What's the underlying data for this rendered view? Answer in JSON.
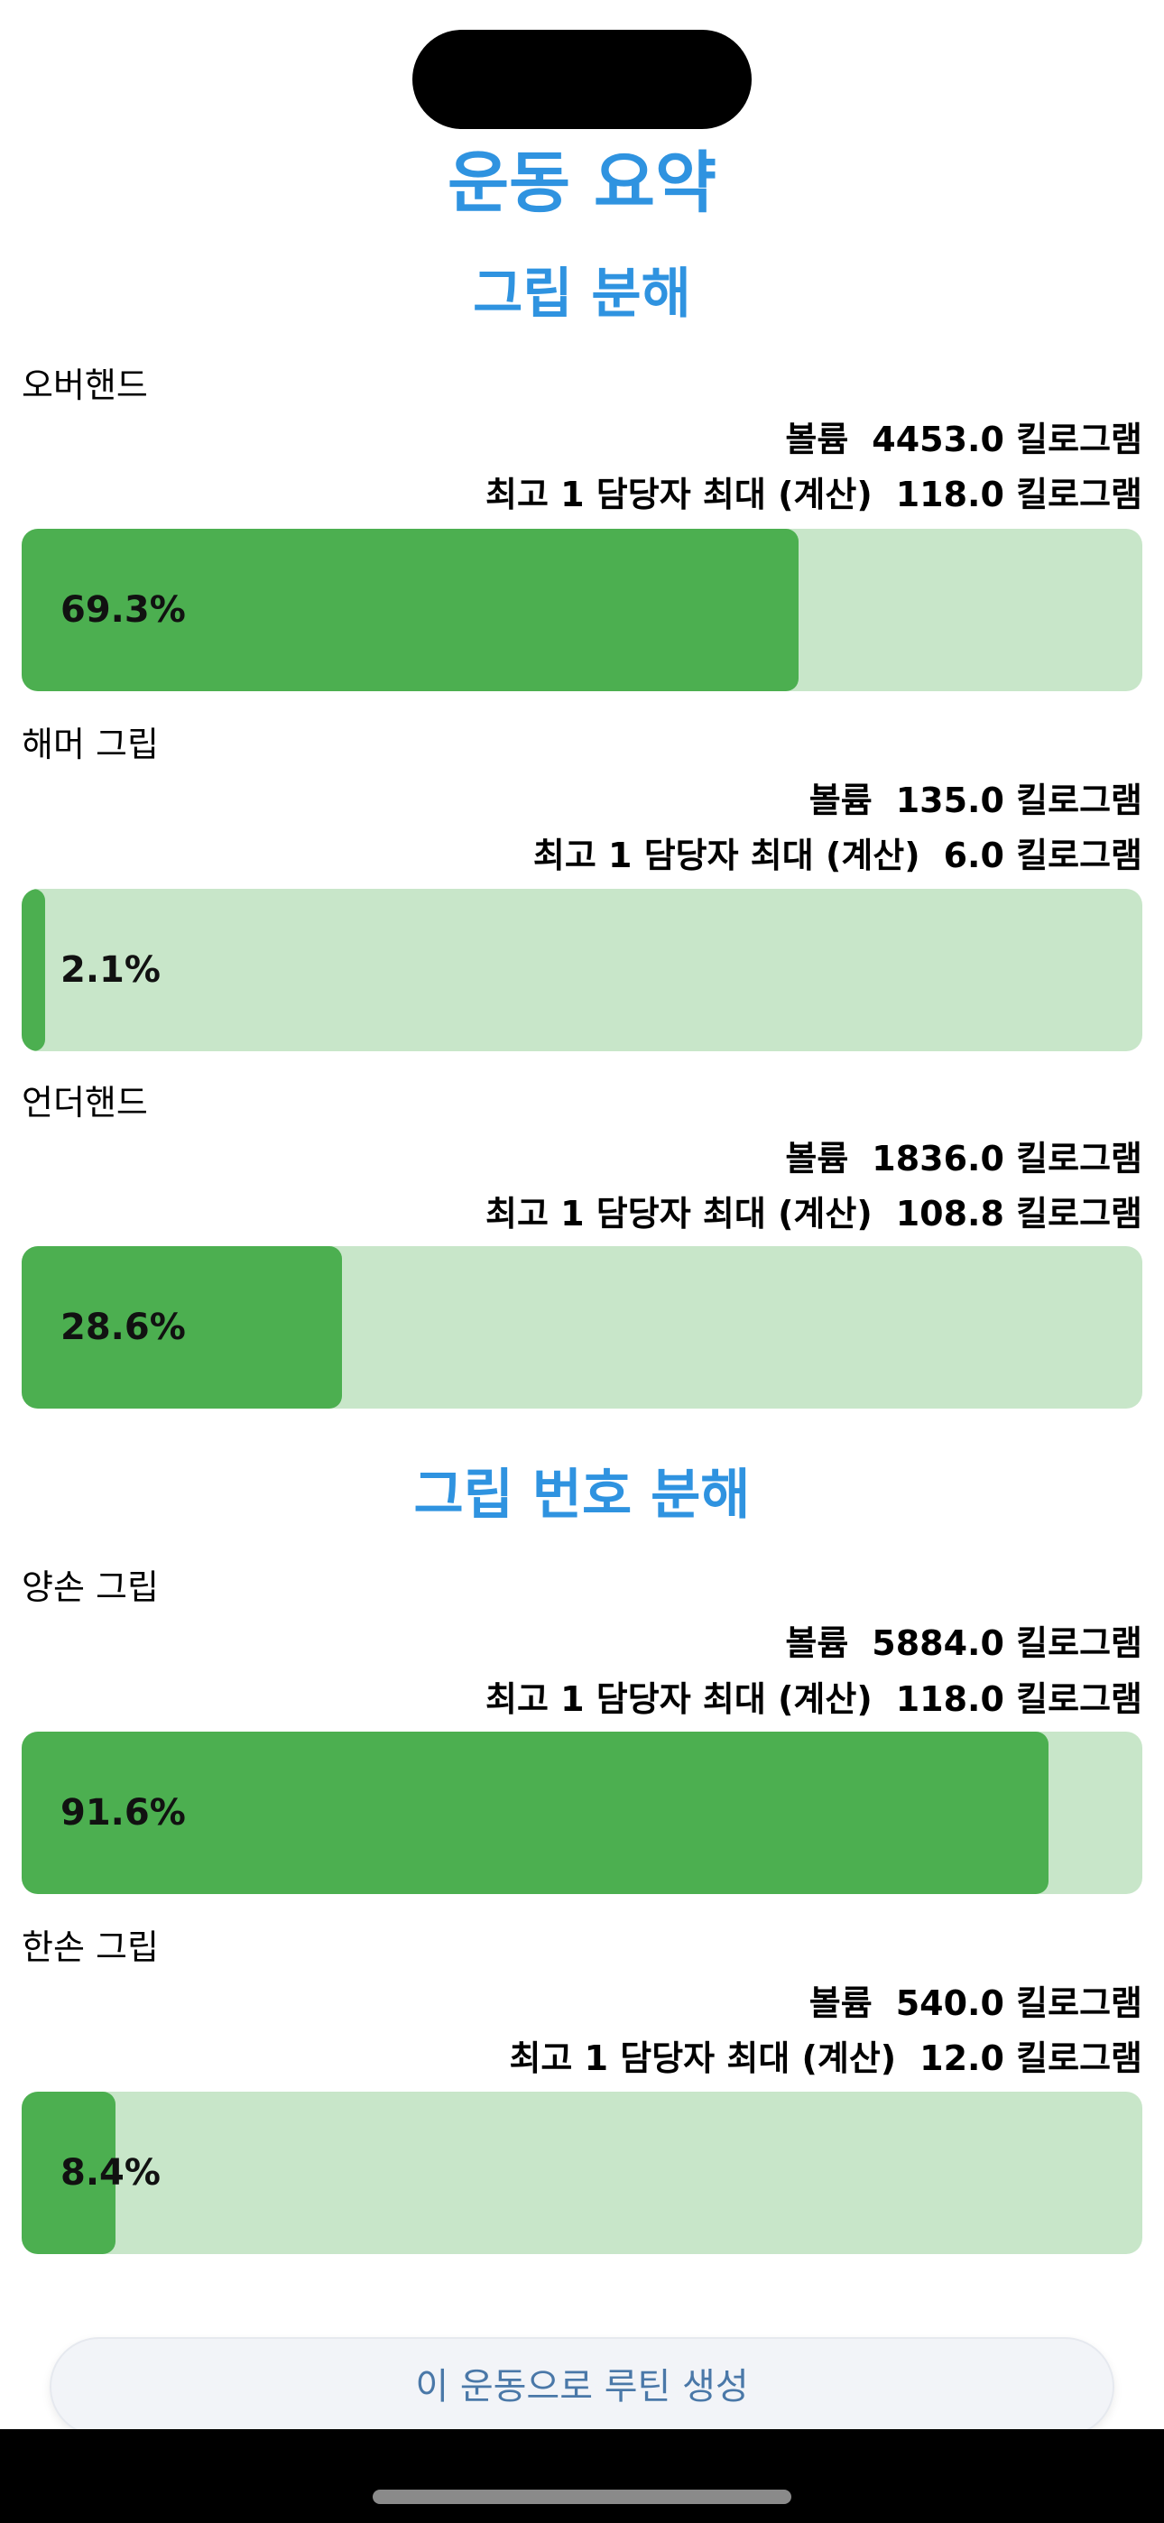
{
  "header": {
    "title": "운동 요약"
  },
  "sections": {
    "grip_breakdown": {
      "title": "그립 분해",
      "items": [
        {
          "name": "오버핸드",
          "volume_label": "볼륨",
          "volume_value": "4453.0 킬로그램",
          "max_label": "최고 1 담당자 최대 (계산)",
          "max_value": "118.0 킬로그램",
          "percent": 69.3,
          "percent_label": "69.3%"
        },
        {
          "name": "해머 그립",
          "volume_label": "볼륨",
          "volume_value": "135.0 킬로그램",
          "max_label": "최고 1 담당자 최대 (계산)",
          "max_value": "6.0 킬로그램",
          "percent": 2.1,
          "percent_label": "2.1%"
        },
        {
          "name": "언더핸드",
          "volume_label": "볼륨",
          "volume_value": "1836.0 킬로그램",
          "max_label": "최고 1 담당자 최대 (계산)",
          "max_value": "108.8 킬로그램",
          "percent": 28.6,
          "percent_label": "28.6%"
        }
      ]
    },
    "grip_count_breakdown": {
      "title": "그립 번호 분해",
      "items": [
        {
          "name": "양손 그립",
          "volume_label": "볼륨",
          "volume_value": "5884.0 킬로그램",
          "max_label": "최고 1 담당자 최대 (계산)",
          "max_value": "118.0 킬로그램",
          "percent": 91.6,
          "percent_label": "91.6%"
        },
        {
          "name": "한손 그립",
          "volume_label": "볼륨",
          "volume_value": "540.0 킬로그램",
          "max_label": "최고 1 담당자 최대 (계산)",
          "max_value": "12.0 킬로그램",
          "percent": 8.4,
          "percent_label": "8.4%"
        }
      ]
    }
  },
  "actions": {
    "create_routine_label": "이 운동으로 루틴 생성"
  },
  "colors": {
    "accent_title": "#2f93e0",
    "bar_fill": "#4caf50",
    "bar_track": "#c8e6c9"
  }
}
